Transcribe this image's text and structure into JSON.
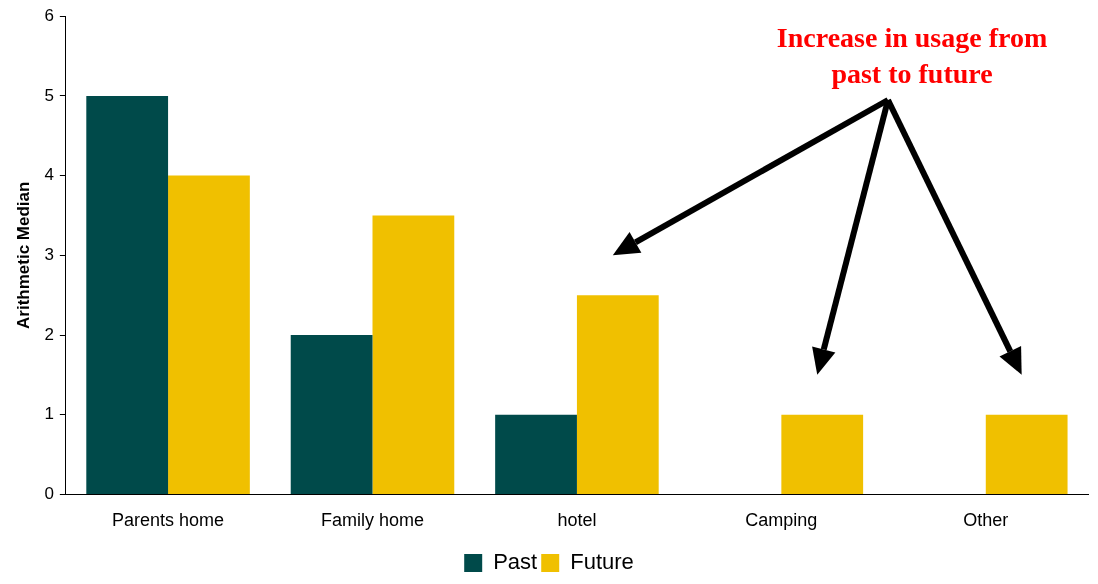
{
  "chart_data": {
    "type": "bar",
    "ylabel": "Arithmetic Median",
    "categories": [
      "Parents home",
      "Family home",
      "hotel",
      "Camping",
      "Other"
    ],
    "series": [
      {
        "name": "Past",
        "color": "#004a4a",
        "values": [
          5,
          2,
          1,
          0,
          0
        ]
      },
      {
        "name": "Future",
        "color": "#f0c000",
        "values": [
          4,
          3.5,
          2.5,
          1,
          1
        ]
      }
    ],
    "ylim": [
      0,
      6
    ],
    "yticks": [
      0,
      1,
      2,
      3,
      4,
      5,
      6
    ],
    "grid": false,
    "legend": "bottom",
    "annotations": [
      "Increase in usage from past to future"
    ]
  }
}
